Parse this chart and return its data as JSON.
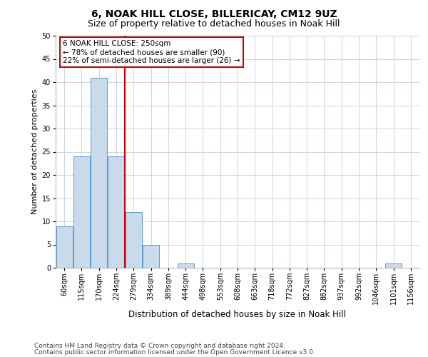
{
  "title1": "6, NOAK HILL CLOSE, BILLERICAY, CM12 9UZ",
  "title2": "Size of property relative to detached houses in Noak Hill",
  "xlabel": "Distribution of detached houses by size in Noak Hill",
  "ylabel": "Number of detached properties",
  "bar_labels": [
    "60sqm",
    "115sqm",
    "170sqm",
    "224sqm",
    "279sqm",
    "334sqm",
    "389sqm",
    "444sqm",
    "498sqm",
    "553sqm",
    "608sqm",
    "663sqm",
    "718sqm",
    "772sqm",
    "827sqm",
    "882sqm",
    "937sqm",
    "992sqm",
    "1046sqm",
    "1101sqm",
    "1156sqm"
  ],
  "bar_values": [
    9,
    24,
    41,
    24,
    12,
    5,
    0,
    1,
    0,
    0,
    0,
    0,
    0,
    0,
    0,
    0,
    0,
    0,
    0,
    1,
    0
  ],
  "bar_color": "#c9daea",
  "bar_edge_color": "#5b9bd5",
  "red_line_x": 3.5,
  "annotation_text": "6 NOAK HILL CLOSE: 250sqm\n← 78% of detached houses are smaller (90)\n22% of semi-detached houses are larger (26) →",
  "annotation_box_color": "#ffffff",
  "annotation_box_edge_color": "#cc0000",
  "ylim": [
    0,
    50
  ],
  "yticks": [
    0,
    5,
    10,
    15,
    20,
    25,
    30,
    35,
    40,
    45,
    50
  ],
  "footnote1": "Contains HM Land Registry data © Crown copyright and database right 2024.",
  "footnote2": "Contains public sector information licensed under the Open Government Licence v3.0.",
  "bg_color": "#ffffff",
  "grid_color": "#c8d4e3",
  "title1_fontsize": 10,
  "title2_fontsize": 9,
  "xlabel_fontsize": 8.5,
  "ylabel_fontsize": 8,
  "tick_fontsize": 7,
  "annot_fontsize": 7.5,
  "footnote_fontsize": 6.5
}
